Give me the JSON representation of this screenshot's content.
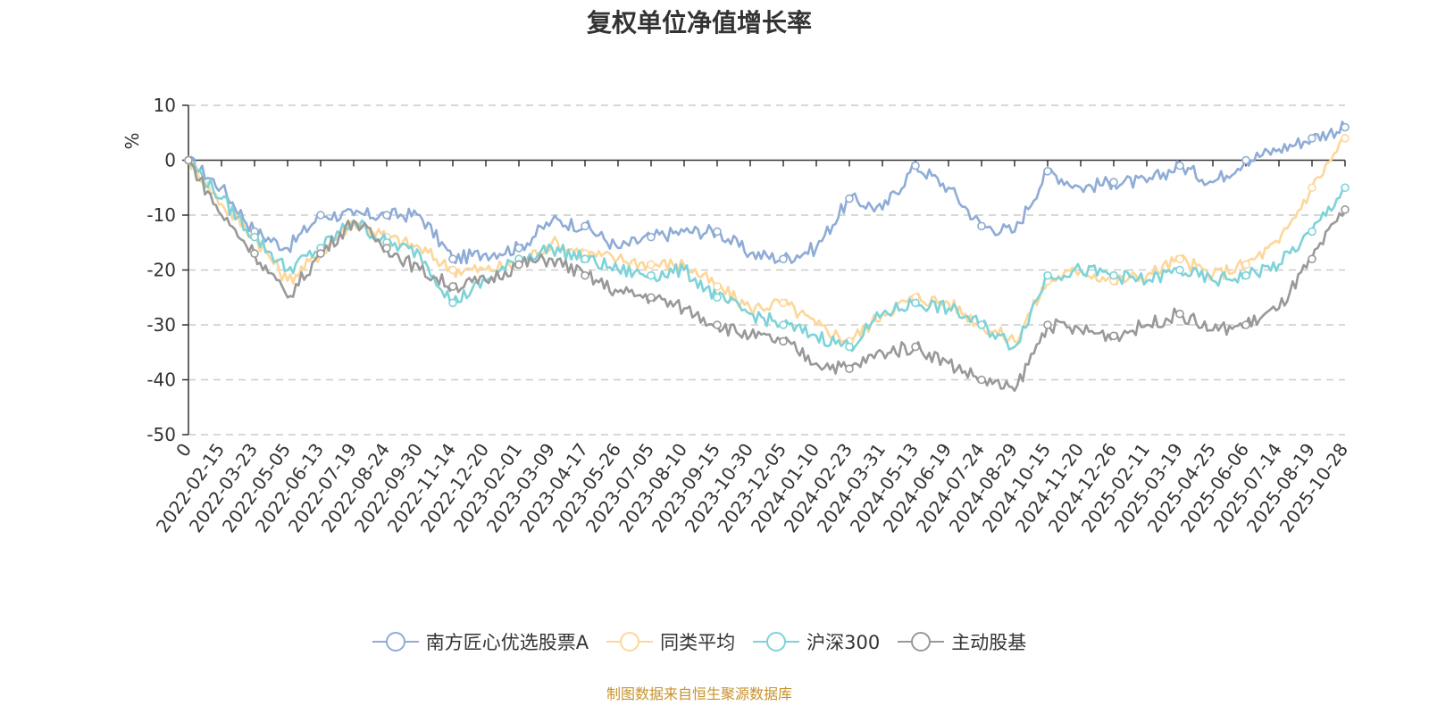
{
  "chart_data": {
    "type": "line",
    "title": "复权单位净值增长率",
    "ylabel": "%",
    "xlabel": "",
    "ylim": [
      -50,
      10
    ],
    "yticks": [
      10,
      0,
      -10,
      -20,
      -30,
      -40,
      -50
    ],
    "grid": true,
    "legend_position": "bottom",
    "categories": [
      "0",
      "2022-02-15",
      "2022-03-23",
      "2022-05-05",
      "2022-06-13",
      "2022-07-19",
      "2022-08-24",
      "2022-09-30",
      "2022-11-14",
      "2022-12-20",
      "2023-02-01",
      "2023-03-09",
      "2023-04-17",
      "2023-05-26",
      "2023-07-05",
      "2023-08-10",
      "2023-09-15",
      "2023-10-30",
      "2023-12-05",
      "2024-01-10",
      "2024-02-23",
      "2024-03-31",
      "2024-05-13",
      "2024-06-19",
      "2024-07-24",
      "2024-08-29",
      "2024-10-15",
      "2024-11-20",
      "2024-12-26",
      "2025-02-11",
      "2025-03-19",
      "2025-04-25",
      "2025-06-06",
      "2025-07-14",
      "2025-08-19",
      "2025-10-28"
    ],
    "series": [
      {
        "name": "南方匠心优选股票A",
        "color": "#8facd6",
        "values": [
          0,
          -5,
          -13,
          -16,
          -10,
          -10,
          -10,
          -10,
          -18,
          -17,
          -16,
          -11,
          -12,
          -16,
          -14,
          -13,
          -13,
          -17,
          -18,
          -16,
          -7,
          -9,
          -1,
          -5,
          -12,
          -13,
          -2,
          -5,
          -4,
          -4,
          -1,
          -4,
          0,
          2,
          4,
          6
        ]
      },
      {
        "name": "同类平均",
        "color": "#fdd79a",
        "values": [
          0,
          -8,
          -14,
          -22,
          -17,
          -11,
          -14,
          -16,
          -20,
          -20,
          -19,
          -15,
          -17,
          -18,
          -19,
          -19,
          -23,
          -27,
          -26,
          -30,
          -33,
          -28,
          -25,
          -26,
          -30,
          -33,
          -22,
          -20,
          -22,
          -21,
          -18,
          -21,
          -19,
          -15,
          -5,
          4
        ]
      },
      {
        "name": "沪深300",
        "color": "#7dd3d8",
        "values": [
          0,
          -7,
          -14,
          -20,
          -16,
          -11,
          -15,
          -17,
          -26,
          -22,
          -18,
          -16,
          -18,
          -20,
          -21,
          -20,
          -25,
          -28,
          -30,
          -32,
          -34,
          -28,
          -26,
          -27,
          -30,
          -34,
          -21,
          -20,
          -21,
          -22,
          -20,
          -22,
          -21,
          -19,
          -13,
          -5
        ]
      },
      {
        "name": "主动股基",
        "color": "#999999",
        "values": [
          0,
          -10,
          -17,
          -25,
          -17,
          -11,
          -16,
          -20,
          -23,
          -22,
          -19,
          -18,
          -21,
          -24,
          -25,
          -27,
          -30,
          -32,
          -33,
          -37,
          -38,
          -35,
          -34,
          -37,
          -40,
          -42,
          -30,
          -31,
          -32,
          -30,
          -28,
          -31,
          -30,
          -27,
          -18,
          -9
        ]
      }
    ]
  },
  "source_note": "制图数据来自恒生聚源数据库"
}
